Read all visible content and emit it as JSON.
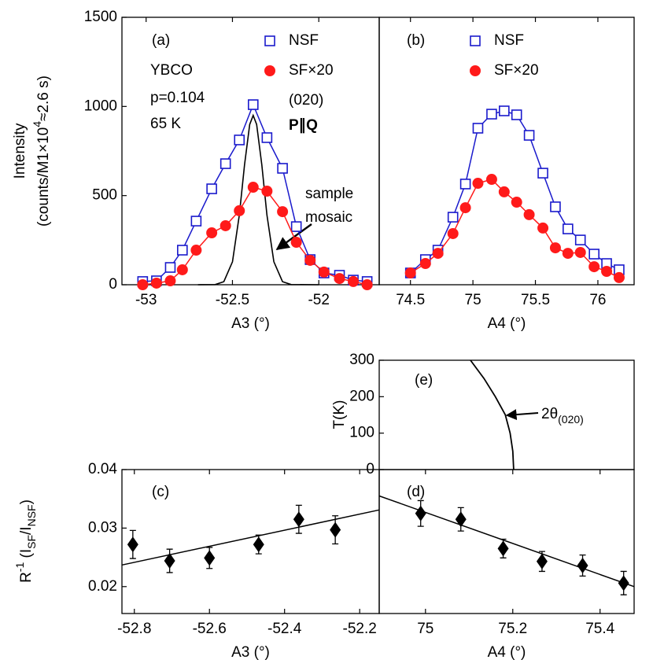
{
  "chart_data": [
    {
      "type": "line",
      "panel_label": "(a)",
      "xlim": [
        -53.14,
        -51.65
      ],
      "ylim": [
        0,
        1500
      ],
      "xticks": [
        -53,
        -52.5,
        -52
      ],
      "yticks": [
        0,
        500,
        1000,
        1500
      ],
      "xlabel": "A3 (°)",
      "ylabel": [
        [
          {
            "text": "Intensity"
          }
        ],
        [
          {
            "text": "(counts/M1×10"
          },
          {
            "text": "4",
            "shift": "sup"
          },
          {
            "text": "≈2.6 s)"
          }
        ]
      ],
      "x": [
        -53.02,
        -52.94,
        -52.86,
        -52.79,
        -52.71,
        -52.62,
        -52.54,
        -52.46,
        -52.38,
        -52.3,
        -52.21,
        -52.13,
        -52.05,
        -51.97,
        -51.88,
        -51.8,
        -51.72
      ],
      "series": [
        {
          "name": "NSF",
          "color": "#1a1acc",
          "marker": "square",
          "values": [
            18,
            22,
            97,
            194,
            357,
            538,
            679,
            812,
            1010,
            825,
            653,
            326,
            141,
            66,
            53,
            26,
            18
          ]
        },
        {
          "name": "SF×20",
          "color": "#ff1a1a",
          "marker": "circle",
          "values": [
            0,
            9,
            22,
            84,
            194,
            291,
            331,
            415,
            547,
            525,
            410,
            238,
            137,
            71,
            35,
            18,
            0
          ]
        }
      ],
      "curve": {
        "color": "#000000",
        "x": [
          -52.7,
          -52.6,
          -52.55,
          -52.5,
          -52.46,
          -52.43,
          -52.4,
          -52.38,
          -52.36,
          -52.33,
          -52.3,
          -52.26,
          -52.21,
          -52.16,
          -52.0
        ],
        "values": [
          0,
          1,
          17,
          129,
          391,
          672,
          899,
          950,
          899,
          672,
          391,
          129,
          17,
          1,
          0
        ]
      },
      "annotations": [
        {
          "text": "YBCO"
        },
        {
          "text": "p=0.104"
        },
        {
          "text": "65 K"
        },
        {
          "text": "(020)"
        },
        {
          "text": "P∥Q",
          "weight": "bold"
        },
        {
          "text": "sample"
        },
        {
          "text": "mosaic"
        }
      ]
    },
    {
      "type": "line",
      "panel_label": "(b)",
      "xlim": [
        74.25,
        76.29
      ],
      "ylim": [
        0,
        1500
      ],
      "xticks": [
        74.5,
        75,
        75.5,
        76
      ],
      "xlabel": "A4 (°)",
      "x": [
        74.5,
        74.62,
        74.72,
        74.84,
        74.94,
        75.04,
        75.15,
        75.25,
        75.35,
        75.45,
        75.56,
        75.66,
        75.76,
        75.86,
        75.97,
        76.07,
        76.17
      ],
      "series": [
        {
          "name": "NSF",
          "color": "#1a1acc",
          "marker": "square",
          "values": [
            66,
            141,
            194,
            379,
            565,
            878,
            957,
            975,
            953,
            838,
            626,
            437,
            313,
            251,
            172,
            119,
            84
          ]
        },
        {
          "name": "SF×20",
          "color": "#ff1a1a",
          "marker": "circle",
          "values": [
            66,
            119,
            176,
            287,
            432,
            569,
            591,
            521,
            463,
            393,
            318,
            207,
            176,
            181,
            101,
            75,
            40
          ]
        }
      ]
    },
    {
      "type": "curve",
      "panel_label": "(e)",
      "xlim": [
        74.894,
        75.478
      ],
      "ylim": [
        0,
        300
      ],
      "yticks": [
        0,
        100,
        200,
        300
      ],
      "ylabel": [
        [
          {
            "text": "T(K)"
          }
        ]
      ],
      "color": "#000000",
      "x": [
        75.103,
        75.134,
        75.16,
        75.183,
        75.194,
        75.2,
        75.202
      ],
      "values": [
        300,
        250,
        200,
        150,
        100,
        50,
        0
      ],
      "annotations": [
        {
          "parts": [
            {
              "text": "2θ"
            },
            {
              "text": "(020)",
              "shift": "sub"
            }
          ]
        }
      ]
    },
    {
      "type": "scatter",
      "panel_label": "(c)",
      "xlim": [
        -52.833,
        -52.148
      ],
      "ylim": [
        0.0154,
        0.04
      ],
      "xticks": [
        -52.8,
        -52.6,
        -52.4,
        -52.2
      ],
      "yticks": [
        0.02,
        0.03,
        0.04
      ],
      "xlabel": "A3 (°)",
      "ylabel": [
        [
          {
            "text": "R"
          },
          {
            "text": "-1",
            "shift": "sup"
          },
          {
            "text": " (I"
          },
          {
            "text": "SF",
            "shift": "sub"
          },
          {
            "text": "/I"
          },
          {
            "text": "NSF",
            "shift": "sub"
          },
          {
            "text": ")"
          }
        ]
      ],
      "color": "#000000",
      "x": [
        -52.804,
        -52.706,
        -52.6,
        -52.469,
        -52.362,
        -52.265
      ],
      "values": [
        0.0272,
        0.0244,
        0.0249,
        0.0272,
        0.0315,
        0.0297
      ],
      "errors": [
        0.0024,
        0.002,
        0.0018,
        0.0016,
        0.0024,
        0.0024
      ],
      "fit": {
        "x": [
          -52.833,
          -52.148
        ],
        "values": [
          0.0237,
          0.0331
        ]
      }
    },
    {
      "type": "scatter",
      "panel_label": "(d)",
      "xlim": [
        74.894,
        75.478
      ],
      "ylim": [
        0.0154,
        0.04
      ],
      "xticks": [
        75,
        75.2,
        75.4
      ],
      "xlabel": "A4 (°)",
      "color": "#000000",
      "x": [
        74.989,
        75.081,
        75.178,
        75.267,
        75.36,
        75.454
      ],
      "values": [
        0.0325,
        0.0315,
        0.0265,
        0.0243,
        0.0236,
        0.0206
      ],
      "errors": [
        0.0022,
        0.002,
        0.0016,
        0.0017,
        0.0018,
        0.002
      ],
      "fit": {
        "x": [
          74.894,
          75.478
        ],
        "values": [
          0.0355,
          0.02
        ]
      }
    }
  ]
}
